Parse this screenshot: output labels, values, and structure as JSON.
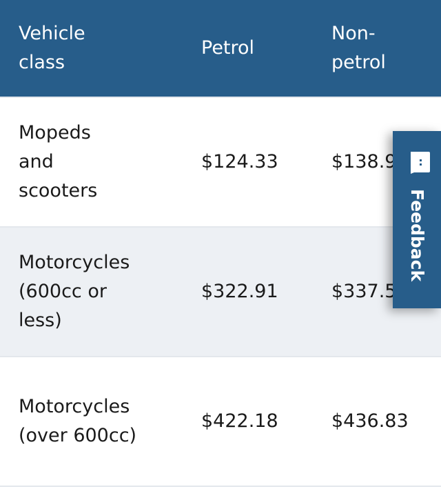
{
  "table": {
    "headers": [
      "Vehicle class",
      "Petrol",
      "Non-petrol"
    ],
    "rows": [
      {
        "vehicle_class": "Mopeds and scooters",
        "petrol": "$124.33",
        "non_petrol": "$138.9"
      },
      {
        "vehicle_class": "Motorcycles (600cc or less)",
        "petrol": "$322.91",
        "non_petrol": "$337.5"
      },
      {
        "vehicle_class": "Motorcycles (over 600cc)",
        "petrol": "$422.18",
        "non_petrol": "$436.83"
      }
    ]
  },
  "feedback": {
    "label": "Feedback",
    "icon": "chat-bubble-icon"
  },
  "colors": {
    "header": "#275d8a",
    "row_alt": "#edf0f4"
  }
}
